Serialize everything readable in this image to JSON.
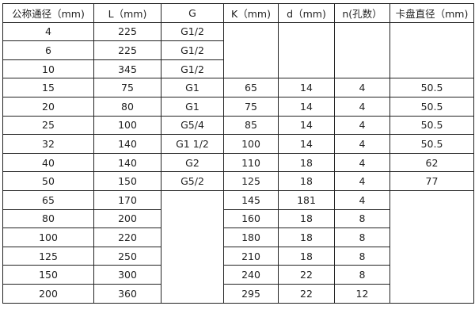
{
  "headers": [
    "公称通径（mm)",
    "L（mm)",
    "G",
    "K（mm)",
    "d（mm)",
    "n(孔数）",
    "卡盘直径（mm)"
  ],
  "rows": [
    {
      "dn": "4",
      "l": "225",
      "g": "G1/2"
    },
    {
      "dn": "6",
      "l": "225",
      "g": "G1/2"
    },
    {
      "dn": "10",
      "l": "345",
      "g": "G1/2"
    },
    {
      "dn": "15",
      "l": "75",
      "g": "G1",
      "k": "65",
      "d": "14",
      "n": "4",
      "chuck": "50.5"
    },
    {
      "dn": "20",
      "l": "80",
      "g": "G1",
      "k": "75",
      "d": "14",
      "n": "4",
      "chuck": "50.5"
    },
    {
      "dn": "25",
      "l": "100",
      "g": "G5/4",
      "k": "85",
      "d": "14",
      "n": "4",
      "chuck": "50.5"
    },
    {
      "dn": "32",
      "l": "140",
      "g": "G1  1/2",
      "k": "100",
      "d": "14",
      "n": "4",
      "chuck": "50.5"
    },
    {
      "dn": "40",
      "l": "140",
      "g": "G2",
      "k": "110",
      "d": "18",
      "n": "4",
      "chuck": "62"
    },
    {
      "dn": "50",
      "l": "150",
      "g": "G5/2",
      "k": "125",
      "d": "18",
      "n": "4",
      "chuck": "77"
    },
    {
      "dn": "65",
      "l": "170",
      "k": "145",
      "d": "181",
      "n": "4"
    },
    {
      "dn": "80",
      "l": "200",
      "k": "160",
      "d": "18",
      "n": "8"
    },
    {
      "dn": "100",
      "l": "220",
      "k": "180",
      "d": "18",
      "n": "8"
    },
    {
      "dn": "125",
      "l": "250",
      "k": "210",
      "d": "18",
      "n": "8"
    },
    {
      "dn": "150",
      "l": "300",
      "k": "240",
      "d": "22",
      "n": "8"
    },
    {
      "dn": "200",
      "l": "360",
      "k": "295",
      "d": "22",
      "n": "12"
    }
  ]
}
